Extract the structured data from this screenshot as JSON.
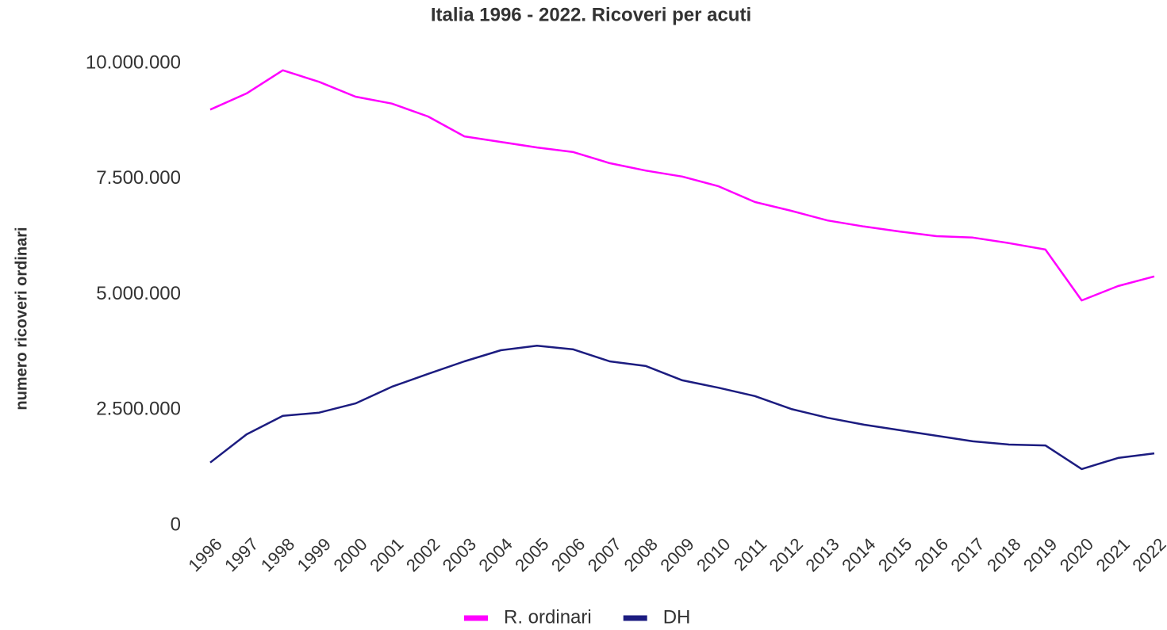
{
  "chart_data": {
    "type": "line",
    "title": "Italia 1996 - 2022. Ricoveri per acuti",
    "y_label": "numero ricoveri ordinari",
    "categories": [
      "1996",
      "1997",
      "1998",
      "1999",
      "2000",
      "2001",
      "2002",
      "2003",
      "2004",
      "2005",
      "2006",
      "2007",
      "2008",
      "2009",
      "2010",
      "2011",
      "2012",
      "2013",
      "2014",
      "2015",
      "2016",
      "2017",
      "2018",
      "2019",
      "2020",
      "2021",
      "2022"
    ],
    "series": [
      {
        "name": "R. ordinari",
        "color": "#ff00ff",
        "values": [
          9000000,
          9350000,
          9850000,
          9600000,
          9280000,
          9130000,
          8850000,
          8420000,
          8300000,
          8180000,
          8080000,
          7840000,
          7680000,
          7550000,
          7340000,
          7000000,
          6810000,
          6600000,
          6470000,
          6360000,
          6260000,
          6230000,
          6110000,
          5970000,
          4870000,
          5180000,
          5390000
        ]
      },
      {
        "name": "DH",
        "color": "#1c1c80",
        "values": [
          1360000,
          1970000,
          2370000,
          2440000,
          2640000,
          3000000,
          3280000,
          3550000,
          3790000,
          3890000,
          3810000,
          3550000,
          3450000,
          3140000,
          2980000,
          2800000,
          2520000,
          2330000,
          2180000,
          2060000,
          1940000,
          1820000,
          1750000,
          1730000,
          1220000,
          1460000,
          1560000
        ]
      }
    ],
    "ylim": [
      0,
      10000000
    ],
    "yticks": [
      0,
      {
        "value": 2500000,
        "label": "2.500.000"
      },
      {
        "value": 5000000,
        "label": "5.000.000"
      },
      {
        "value": 7500000,
        "label": "7.500.000"
      },
      {
        "value": 10000000,
        "label": "10.000.000"
      }
    ],
    "grid": false,
    "legend": "bottom"
  }
}
